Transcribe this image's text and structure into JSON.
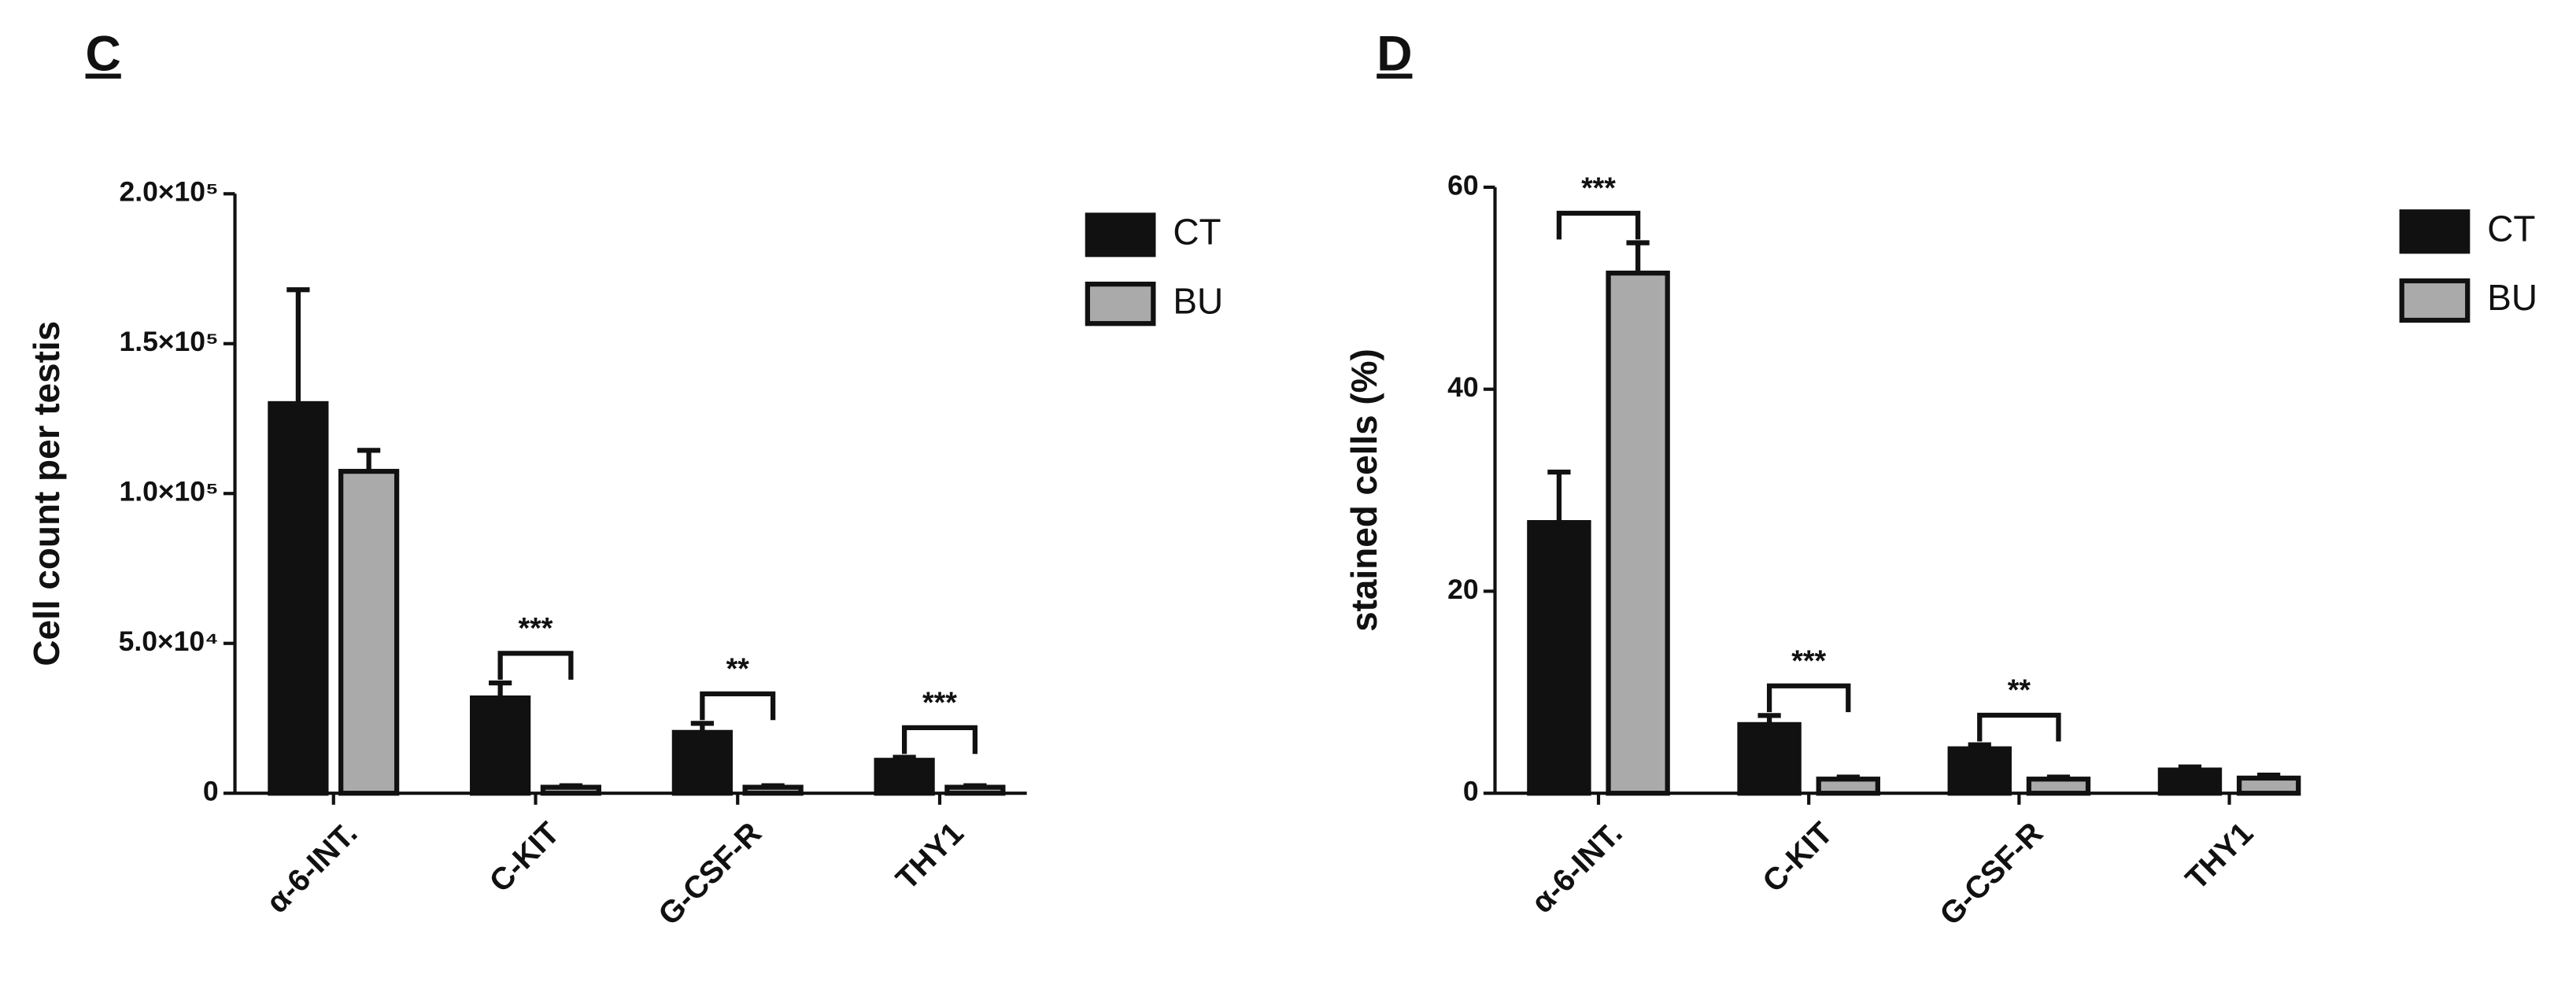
{
  "chart_data": [
    {
      "type": "bar",
      "panel_label": "C",
      "y_label": "Cell count per testis",
      "categories": [
        "α-6-INT.",
        "C-KIT",
        "G-CSF-R",
        "THY1"
      ],
      "series": [
        {
          "name": "CT",
          "color": "#111111",
          "values": [
            130000,
            31800,
            20300,
            11000
          ],
          "errors": [
            38000,
            5000,
            3000,
            1000
          ]
        },
        {
          "name": "BU",
          "color": "#aaaaaa",
          "values": [
            107400,
            2000,
            2000,
            2000
          ],
          "errors": [
            7000,
            500,
            500,
            500
          ]
        }
      ],
      "significance": [
        null,
        "***",
        "**",
        "***"
      ],
      "ylim": [
        0,
        200000
      ],
      "yticks": [
        0,
        {
          "value": 50000,
          "label": "5.0×10⁴"
        },
        {
          "value": 100000,
          "label": "1.0×10⁵"
        },
        {
          "value": 150000,
          "label": "1.5×10⁵"
        },
        {
          "value": 200000,
          "label": "2.0×10⁵"
        }
      ]
    },
    {
      "type": "bar",
      "panel_label": "D",
      "y_label": "stained cells (%)",
      "categories": [
        "α-6-INT.",
        "C-KIT",
        "G-CSF-R",
        "THY1"
      ],
      "series": [
        {
          "name": "CT",
          "color": "#111111",
          "values": [
            26.8,
            6.8,
            4.4,
            2.3
          ],
          "errors": [
            5,
            0.9,
            0.4,
            0.3
          ]
        },
        {
          "name": "BU",
          "color": "#aaaaaa",
          "values": [
            51.5,
            1.4,
            1.4,
            1.5
          ],
          "errors": [
            3,
            0.2,
            0.2,
            0.3
          ]
        }
      ],
      "significance": [
        "***",
        "***",
        "**",
        null
      ],
      "ylim": [
        0,
        60
      ],
      "yticks": [
        0,
        20,
        40,
        60
      ]
    }
  ]
}
